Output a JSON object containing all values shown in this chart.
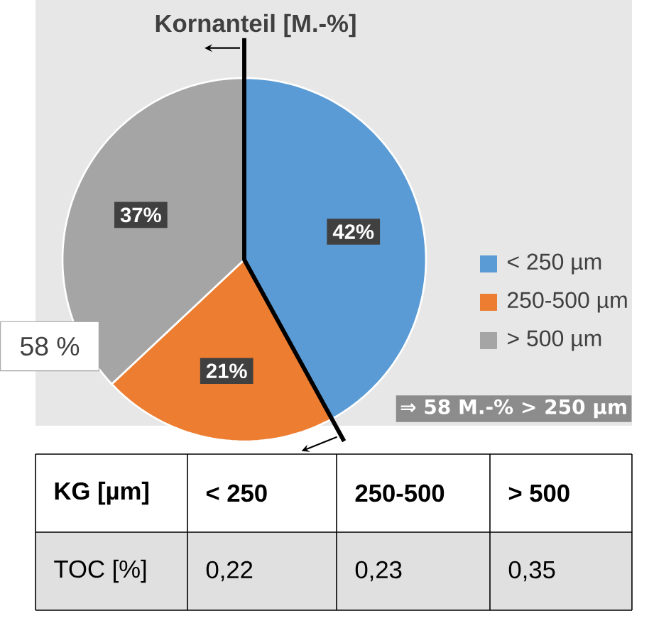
{
  "chart_data": {
    "type": "pie",
    "title": "Kornanteil [M.-%]",
    "categories": [
      "< 250 µm",
      "250-500 µm",
      "> 500 µm"
    ],
    "values": [
      42,
      21,
      37
    ],
    "value_labels": [
      "42%",
      "21%",
      "37%"
    ],
    "colors": [
      "#5b9bd5",
      "#ed7d31",
      "#a5a5a5"
    ],
    "legend": "right",
    "annotations": [
      "58 %",
      "⇒ 58 M.-% > 250 µm",
      "KG [µm]",
      "< 250",
      "250-500",
      "> 500",
      "TOC [%]",
      "0,22",
      "0,23",
      "0,35"
    ]
  }
}
